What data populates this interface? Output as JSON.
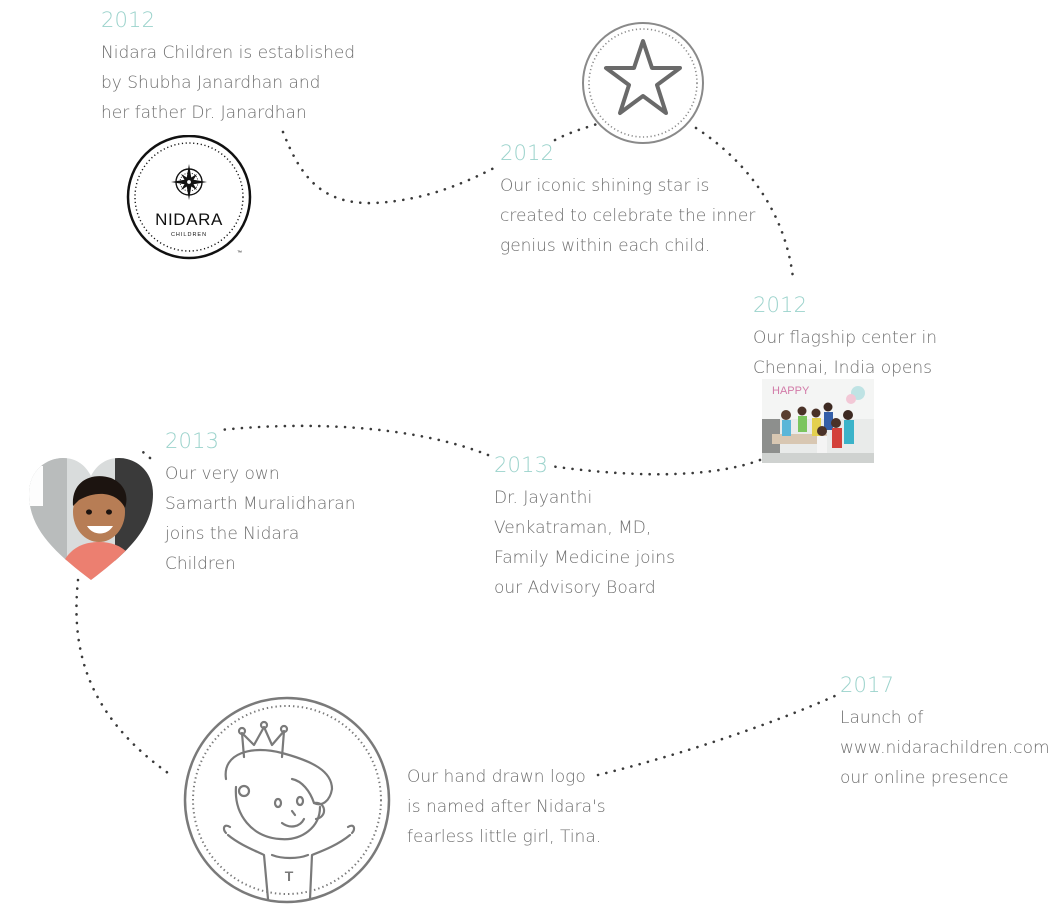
{
  "colors": {
    "year": "#9cd3cc",
    "text": "#6f6f6f",
    "dots": "#3a3a3a",
    "badge": "#7a7a7a"
  },
  "events": [
    {
      "year": "2012",
      "lines": [
        "Nidara Children is established",
        "by Shubha Janardhan and",
        "her father Dr. Janardhan"
      ]
    },
    {
      "year": "2012",
      "lines": [
        "Our iconic shining star is",
        "created to celebrate the inner",
        "genius within each child."
      ]
    },
    {
      "year": "2012",
      "lines": [
        "Our flagship center in",
        "Chennai, India opens"
      ]
    },
    {
      "year": "2013",
      "lines": [
        "Our very own",
        "Samarth Muralidharan",
        "joins the Nidara",
        "Children"
      ]
    },
    {
      "year": "2013",
      "lines": [
        "Dr. Jayanthi",
        "Venkatraman, MD,",
        "Family Medicine  joins",
        "our Advisory Board"
      ]
    },
    {
      "year": "",
      "lines": [
        "Our hand drawn logo",
        "is named after Nidara's",
        "fearless little girl, Tina."
      ]
    },
    {
      "year": "2017",
      "lines": [
        "Launch of",
        "www.nidarachildren.com",
        "our online presence"
      ]
    }
  ],
  "logo": {
    "name": "NIDARA",
    "sub": "CHILDREN",
    "tm": "™"
  },
  "photo_text": "HAPPY",
  "icons": [
    "compass-icon",
    "star-icon",
    "heart-photo",
    "tina-logo"
  ]
}
